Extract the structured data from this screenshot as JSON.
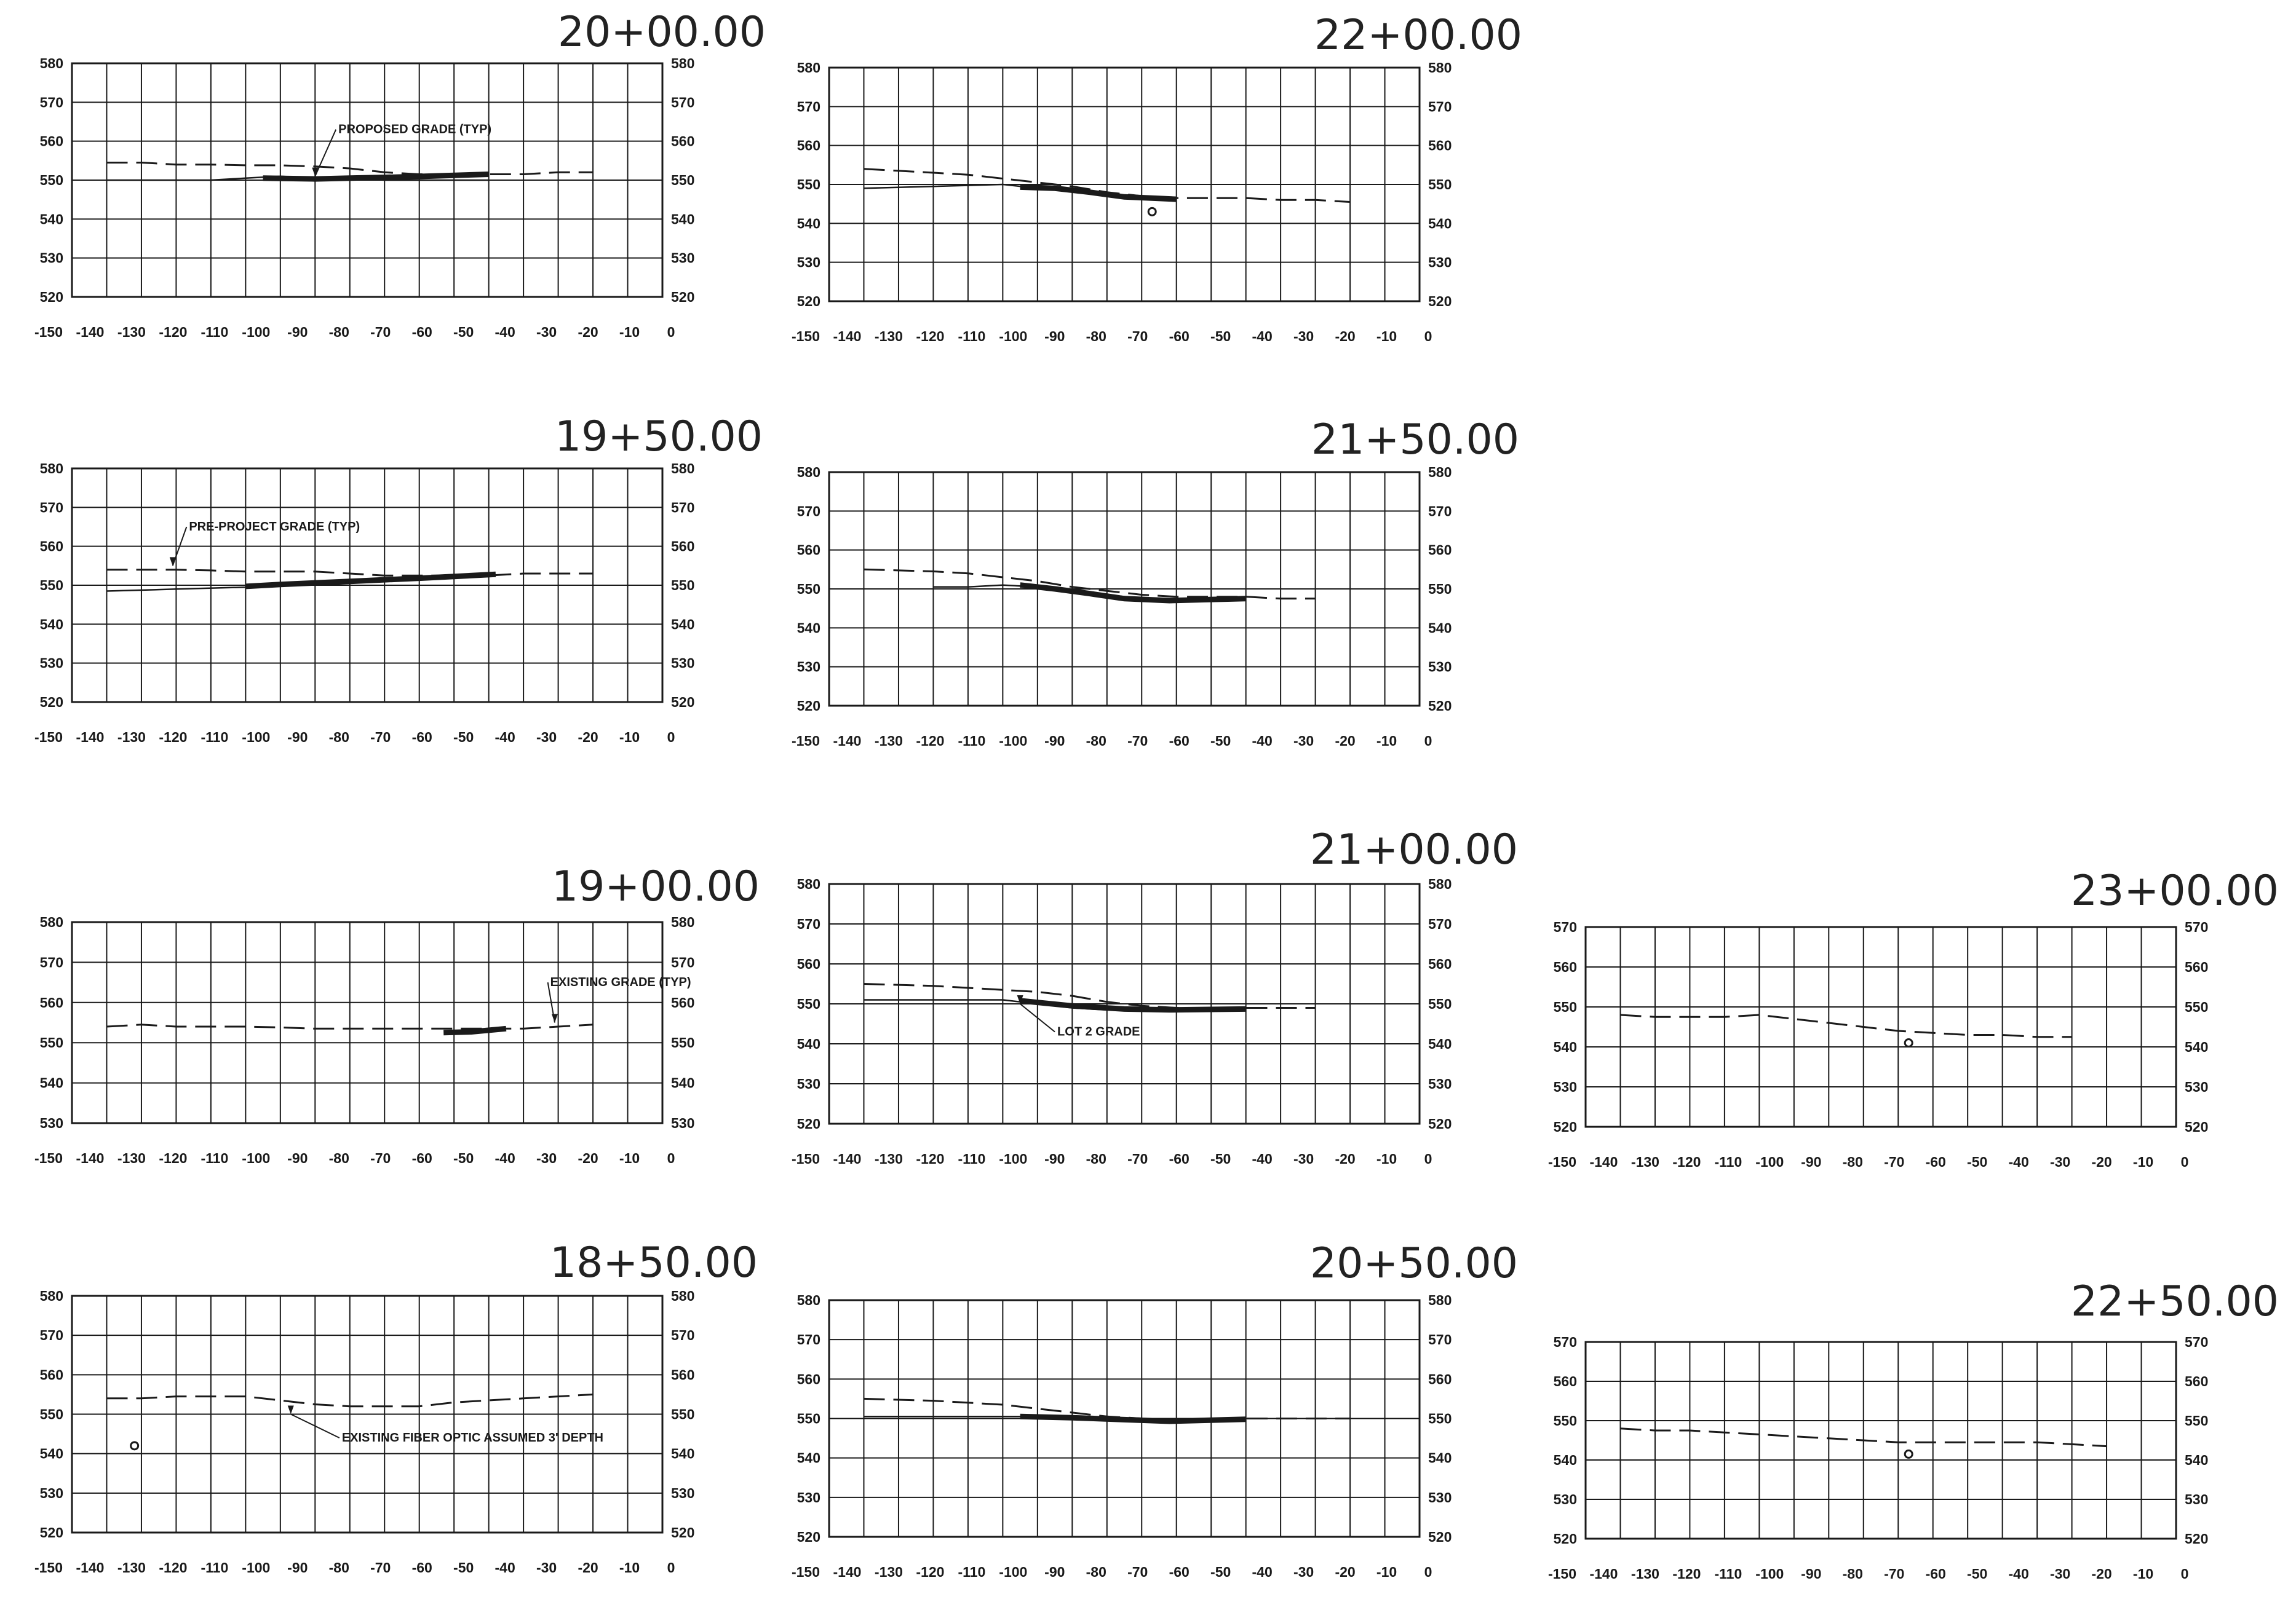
{
  "colors": {
    "ink": "#1a1a1a",
    "paper": "#ffffff"
  },
  "sections": [
    {
      "station": "20+00.00",
      "y_ticks": [
        580,
        570,
        560,
        550,
        540,
        530,
        520
      ],
      "x_ticks": [
        "-150",
        "-140",
        "-130",
        "-120",
        "-110",
        "-100",
        "-90",
        "-80",
        "-70",
        "-60",
        "-50",
        "-40",
        "-30",
        "-20",
        "-10",
        "0"
      ],
      "existing_grade": [
        [
          -150,
          554.5
        ],
        [
          -140,
          554.5
        ],
        [
          -130,
          554
        ],
        [
          -120,
          554
        ],
        [
          -110,
          553.8
        ],
        [
          -100,
          553.8
        ],
        [
          -90,
          553.5
        ],
        [
          -80,
          553
        ],
        [
          -70,
          552
        ],
        [
          -60,
          551.5
        ],
        [
          -50,
          551.5
        ],
        [
          -40,
          551.5
        ],
        [
          -30,
          551.5
        ],
        [
          -20,
          552
        ],
        [
          -10,
          552
        ]
      ],
      "lot_grade": [
        [
          -150,
          550
        ],
        [
          -120,
          550
        ],
        [
          -110,
          550.5
        ],
        [
          -100,
          551
        ],
        [
          -90,
          550.5
        ],
        [
          -80,
          550.5
        ],
        [
          -70,
          550
        ],
        [
          -60,
          550
        ],
        [
          -50,
          550
        ],
        [
          -40,
          550
        ]
      ],
      "proposed_grade": [
        [
          -105,
          550.5
        ],
        [
          -90,
          550.3
        ],
        [
          -80,
          550.5
        ],
        [
          -65,
          550.8
        ],
        [
          -40,
          551.5
        ]
      ],
      "annotations": [
        {
          "text": "PROPOSED GRADE (TYP)",
          "x": -84,
          "y": 563,
          "ax": -90,
          "ay": 551
        }
      ]
    },
    {
      "station": "22+00.00",
      "y_ticks": [
        580,
        570,
        560,
        550,
        540,
        530,
        520
      ],
      "x_ticks": [
        "-150",
        "-140",
        "-130",
        "-120",
        "-110",
        "-100",
        "-90",
        "-80",
        "-70",
        "-60",
        "-50",
        "-40",
        "-30",
        "-20",
        "-10",
        "0"
      ],
      "existing_grade": [
        [
          -150,
          554
        ],
        [
          -130,
          553
        ],
        [
          -120,
          552.5
        ],
        [
          -110,
          551.5
        ],
        [
          -100,
          550.5
        ],
        [
          -90,
          549.5
        ],
        [
          -80,
          548
        ],
        [
          -70,
          547
        ],
        [
          -60,
          546.5
        ],
        [
          -50,
          546.5
        ],
        [
          -40,
          546.5
        ],
        [
          -30,
          546
        ],
        [
          -20,
          546
        ],
        [
          -10,
          545.5
        ]
      ],
      "lot_grade": [
        [
          -150,
          549
        ],
        [
          -130,
          549.5
        ],
        [
          -110,
          550
        ],
        [
          -100,
          549
        ],
        [
          -90,
          548.5
        ],
        [
          -80,
          547.5
        ],
        [
          -70,
          546.5
        ],
        [
          -60,
          546
        ]
      ],
      "proposed_grade": [
        [
          -105,
          549.3
        ],
        [
          -95,
          549
        ],
        [
          -85,
          548
        ],
        [
          -75,
          546.8
        ],
        [
          -60,
          546.2
        ]
      ],
      "markers": [
        [
          -67,
          543
        ]
      ]
    },
    {
      "station": "19+50.00",
      "y_ticks": [
        580,
        570,
        560,
        550,
        540,
        530,
        520
      ],
      "x_ticks": [
        "-150",
        "-140",
        "-130",
        "-120",
        "-110",
        "-100",
        "-90",
        "-80",
        "-70",
        "-60",
        "-50",
        "-40",
        "-30",
        "-20",
        "-10",
        "0"
      ],
      "existing_grade": [
        [
          -150,
          554
        ],
        [
          -130,
          554
        ],
        [
          -120,
          553.8
        ],
        [
          -110,
          553.5
        ],
        [
          -100,
          553.5
        ],
        [
          -90,
          553.5
        ],
        [
          -80,
          553
        ],
        [
          -70,
          552.5
        ],
        [
          -60,
          552.5
        ],
        [
          -50,
          552.5
        ],
        [
          -40,
          552.5
        ],
        [
          -30,
          553
        ],
        [
          -20,
          553
        ],
        [
          -10,
          553
        ]
      ],
      "lot_grade": [
        [
          -150,
          548.5
        ],
        [
          -130,
          549
        ],
        [
          -110,
          549.5
        ],
        [
          -100,
          550
        ],
        [
          -80,
          550.5
        ],
        [
          -60,
          551.5
        ],
        [
          -40,
          552.5
        ]
      ],
      "proposed_grade": [
        [
          -110,
          549.7
        ],
        [
          -100,
          550.2
        ],
        [
          -80,
          551
        ],
        [
          -60,
          551.8
        ],
        [
          -38,
          552.8
        ]
      ],
      "annotations": [
        {
          "text": "PRE-PROJECT GRADE (TYP)",
          "x": -127,
          "y": 565,
          "ax": -131,
          "ay": 555
        }
      ]
    },
    {
      "station": "21+50.00",
      "y_ticks": [
        580,
        570,
        560,
        550,
        540,
        530,
        520
      ],
      "x_ticks": [
        "-150",
        "-140",
        "-130",
        "-120",
        "-110",
        "-100",
        "-90",
        "-80",
        "-70",
        "-60",
        "-50",
        "-40",
        "-30",
        "-20",
        "-10",
        "0"
      ],
      "existing_grade": [
        [
          -150,
          555
        ],
        [
          -130,
          554.5
        ],
        [
          -120,
          554
        ],
        [
          -110,
          553
        ],
        [
          -100,
          552
        ],
        [
          -90,
          550.5
        ],
        [
          -80,
          549.5
        ],
        [
          -70,
          548.5
        ],
        [
          -60,
          548
        ],
        [
          -50,
          548
        ],
        [
          -40,
          548
        ],
        [
          -30,
          547.5
        ],
        [
          -20,
          547.5
        ]
      ],
      "lot_grade": [
        [
          -130,
          550.5
        ],
        [
          -120,
          550.5
        ],
        [
          -110,
          551
        ],
        [
          -100,
          550.5
        ],
        [
          -90,
          549.5
        ],
        [
          -80,
          548.5
        ],
        [
          -70,
          547.5
        ],
        [
          -60,
          547.5
        ]
      ],
      "proposed_grade": [
        [
          -105,
          551
        ],
        [
          -95,
          550
        ],
        [
          -85,
          548.8
        ],
        [
          -75,
          547.5
        ],
        [
          -62,
          547
        ],
        [
          -40,
          547.5
        ]
      ]
    },
    {
      "station": "19+00.00",
      "y_ticks": [
        580,
        570,
        560,
        550,
        540,
        530
      ],
      "x_ticks": [
        "-150",
        "-140",
        "-130",
        "-120",
        "-110",
        "-100",
        "-90",
        "-80",
        "-70",
        "-60",
        "-50",
        "-40",
        "-30",
        "-20",
        "-10",
        "0"
      ],
      "existing_grade": [
        [
          -150,
          554
        ],
        [
          -140,
          554.5
        ],
        [
          -130,
          554
        ],
        [
          -120,
          554
        ],
        [
          -110,
          554
        ],
        [
          -100,
          553.8
        ],
        [
          -90,
          553.5
        ],
        [
          -80,
          553.5
        ],
        [
          -70,
          553.5
        ],
        [
          -60,
          553.5
        ],
        [
          -50,
          553.5
        ],
        [
          -40,
          553.5
        ],
        [
          -30,
          553.5
        ],
        [
          -20,
          554
        ],
        [
          -10,
          554.5
        ]
      ],
      "proposed_grade": [
        [
          -53,
          552.5
        ],
        [
          -45,
          552.7
        ],
        [
          -35,
          553.5
        ]
      ],
      "annotations": [
        {
          "text": "EXISTING GRADE (TYP)",
          "x": -23,
          "y": 565,
          "ax": -21,
          "ay": 555
        }
      ]
    },
    {
      "station": "21+00.00",
      "y_ticks": [
        580,
        570,
        560,
        550,
        540,
        530,
        520
      ],
      "x_ticks": [
        "-150",
        "-140",
        "-130",
        "-120",
        "-110",
        "-100",
        "-90",
        "-80",
        "-70",
        "-60",
        "-50",
        "-40",
        "-30",
        "-20",
        "-10",
        "0"
      ],
      "existing_grade": [
        [
          -150,
          555
        ],
        [
          -130,
          554.5
        ],
        [
          -120,
          554
        ],
        [
          -110,
          553.5
        ],
        [
          -100,
          553
        ],
        [
          -90,
          552
        ],
        [
          -80,
          550.5
        ],
        [
          -70,
          549.5
        ],
        [
          -60,
          549
        ],
        [
          -50,
          549
        ],
        [
          -40,
          549
        ],
        [
          -30,
          549
        ],
        [
          -20,
          549
        ]
      ],
      "lot_grade": [
        [
          -150,
          551
        ],
        [
          -130,
          551
        ],
        [
          -110,
          551
        ],
        [
          -100,
          550
        ],
        [
          -90,
          549
        ],
        [
          -80,
          548.5
        ],
        [
          -70,
          548.5
        ]
      ],
      "proposed_grade": [
        [
          -105,
          550.8
        ],
        [
          -90,
          549.5
        ],
        [
          -75,
          548.7
        ],
        [
          -62,
          548.5
        ],
        [
          -40,
          548.7
        ]
      ],
      "annotations": [
        {
          "text": "LOT 2 GRADE",
          "x": -95,
          "y": 543,
          "ax": -105,
          "ay": 550
        }
      ]
    },
    {
      "station": "23+00.00",
      "y_ticks": [
        570,
        560,
        550,
        540,
        530,
        520
      ],
      "x_ticks": [
        "-150",
        "-140",
        "-130",
        "-120",
        "-110",
        "-100",
        "-90",
        "-80",
        "-70",
        "-60",
        "-50",
        "-40",
        "-30",
        "-20",
        "-10",
        "0"
      ],
      "existing_grade": [
        [
          -150,
          548
        ],
        [
          -140,
          547.5
        ],
        [
          -130,
          547.5
        ],
        [
          -120,
          547.5
        ],
        [
          -110,
          548
        ],
        [
          -100,
          547
        ],
        [
          -90,
          546
        ],
        [
          -80,
          545
        ],
        [
          -70,
          544
        ],
        [
          -60,
          543.5
        ],
        [
          -50,
          543
        ],
        [
          -40,
          543
        ],
        [
          -30,
          542.5
        ],
        [
          -20,
          542.5
        ]
      ],
      "markers": [
        [
          -67,
          541
        ]
      ]
    },
    {
      "station": "18+50.00",
      "y_ticks": [
        580,
        570,
        560,
        550,
        540,
        530,
        520
      ],
      "x_ticks": [
        "-150",
        "-140",
        "-130",
        "-120",
        "-110",
        "-100",
        "-90",
        "-80",
        "-70",
        "-60",
        "-50",
        "-40",
        "-30",
        "-20",
        "-10",
        "0"
      ],
      "existing_grade": [
        [
          -150,
          554
        ],
        [
          -140,
          554
        ],
        [
          -130,
          554.5
        ],
        [
          -120,
          554.5
        ],
        [
          -110,
          554.5
        ],
        [
          -100,
          553.5
        ],
        [
          -90,
          552.5
        ],
        [
          -80,
          552
        ],
        [
          -70,
          552
        ],
        [
          -60,
          552
        ],
        [
          -50,
          553
        ],
        [
          -40,
          553.5
        ],
        [
          -30,
          554
        ],
        [
          -20,
          554.5
        ],
        [
          -10,
          555
        ]
      ],
      "markers": [
        [
          -142,
          542
        ]
      ],
      "annotations": [
        {
          "text": "EXISTING FIBER OPTIC ASSUMED 3' DEPTH",
          "x": -83,
          "y": 544,
          "ax": -97,
          "ay": 550
        }
      ]
    },
    {
      "station": "20+50.00",
      "y_ticks": [
        580,
        570,
        560,
        550,
        540,
        530,
        520
      ],
      "x_ticks": [
        "-150",
        "-140",
        "-130",
        "-120",
        "-110",
        "-100",
        "-90",
        "-80",
        "-70",
        "-60",
        "-50",
        "-40",
        "-30",
        "-20",
        "-10",
        "0"
      ],
      "existing_grade": [
        [
          -150,
          555
        ],
        [
          -130,
          554.5
        ],
        [
          -120,
          554
        ],
        [
          -110,
          553.5
        ],
        [
          -100,
          552.5
        ],
        [
          -90,
          551.5
        ],
        [
          -80,
          550.5
        ],
        [
          -70,
          550
        ],
        [
          -60,
          549.5
        ],
        [
          -50,
          549.5
        ],
        [
          -40,
          550
        ],
        [
          -30,
          550
        ],
        [
          -20,
          550
        ],
        [
          -10,
          550
        ]
      ],
      "lot_grade": [
        [
          -150,
          550.5
        ],
        [
          -120,
          550.5
        ],
        [
          -100,
          550.5
        ],
        [
          -90,
          550
        ],
        [
          -80,
          549.5
        ],
        [
          -70,
          549.5
        ],
        [
          -60,
          549.5
        ]
      ],
      "proposed_grade": [
        [
          -105,
          550.5
        ],
        [
          -90,
          550.2
        ],
        [
          -75,
          549.7
        ],
        [
          -62,
          549.3
        ],
        [
          -40,
          549.8
        ]
      ]
    },
    {
      "station": "22+50.00",
      "y_ticks": [
        570,
        560,
        550,
        540,
        530,
        520
      ],
      "x_ticks": [
        "-150",
        "-140",
        "-130",
        "-120",
        "-110",
        "-100",
        "-90",
        "-80",
        "-70",
        "-60",
        "-50",
        "-40",
        "-30",
        "-20",
        "-10",
        "0"
      ],
      "existing_grade": [
        [
          -150,
          548
        ],
        [
          -140,
          547.5
        ],
        [
          -130,
          547.5
        ],
        [
          -120,
          547
        ],
        [
          -110,
          546.5
        ],
        [
          -100,
          546
        ],
        [
          -90,
          545.5
        ],
        [
          -80,
          545
        ],
        [
          -70,
          544.5
        ],
        [
          -60,
          544.5
        ],
        [
          -50,
          544.5
        ],
        [
          -40,
          544.5
        ],
        [
          -30,
          544.5
        ],
        [
          -20,
          544
        ],
        [
          -10,
          543.5
        ]
      ],
      "markers": [
        [
          -67,
          541.5
        ]
      ]
    }
  ]
}
